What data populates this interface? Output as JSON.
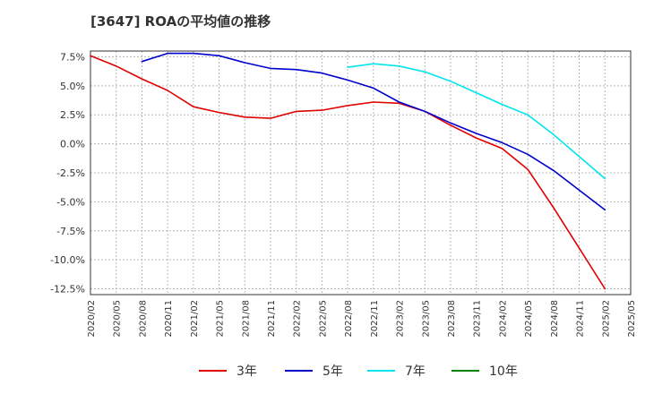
{
  "chart_data": {
    "type": "line",
    "title": "[3647]  ROAの平均値の推移",
    "xlabel": "",
    "ylabel": "",
    "x": [
      "2020/02",
      "2020/05",
      "2020/08",
      "2020/11",
      "2021/02",
      "2021/05",
      "2021/08",
      "2021/11",
      "2022/02",
      "2022/05",
      "2022/08",
      "2022/11",
      "2023/02",
      "2023/05",
      "2023/08",
      "2023/11",
      "2024/02",
      "2024/05",
      "2024/08",
      "2024/11",
      "2025/02",
      "2025/05"
    ],
    "ylim": [
      -13.0,
      8.0
    ],
    "yticks": [
      7.5,
      5.0,
      2.5,
      0.0,
      -2.5,
      -5.0,
      -7.5,
      -10.0,
      -12.5
    ],
    "ytick_labels": [
      "7.5%",
      "5.0%",
      "2.5%",
      "0.0%",
      "-2.5%",
      "-5.0%",
      "-7.5%",
      "-10.0%",
      "-12.5%"
    ],
    "grid": true,
    "legend_position": "bottom",
    "series": [
      {
        "name": "3年",
        "color": "#e00000",
        "values": [
          7.6,
          6.7,
          5.6,
          4.6,
          3.2,
          2.7,
          2.3,
          2.2,
          2.8,
          2.9,
          3.3,
          3.6,
          3.5,
          2.8,
          1.6,
          0.5,
          -0.4,
          -2.2,
          -5.5,
          -9.0,
          -12.5,
          null
        ]
      },
      {
        "name": "5年",
        "color": "#0000cc",
        "values": [
          null,
          null,
          7.1,
          7.8,
          7.8,
          7.6,
          7.0,
          6.5,
          6.4,
          6.1,
          5.5,
          4.8,
          3.6,
          2.8,
          1.8,
          0.9,
          0.1,
          -0.9,
          -2.3,
          -4.0,
          -5.7,
          null
        ]
      },
      {
        "name": "7年",
        "color": "#00e5ee",
        "values": [
          null,
          null,
          null,
          null,
          null,
          null,
          null,
          null,
          null,
          null,
          6.6,
          6.9,
          6.7,
          6.2,
          5.4,
          4.4,
          3.4,
          2.5,
          0.8,
          -1.1,
          -3.0,
          null
        ]
      },
      {
        "name": "10年",
        "color": "#008000",
        "values": [
          null,
          null,
          null,
          null,
          null,
          null,
          null,
          null,
          null,
          null,
          null,
          null,
          null,
          null,
          null,
          null,
          null,
          null,
          null,
          null,
          null,
          null
        ]
      }
    ]
  }
}
